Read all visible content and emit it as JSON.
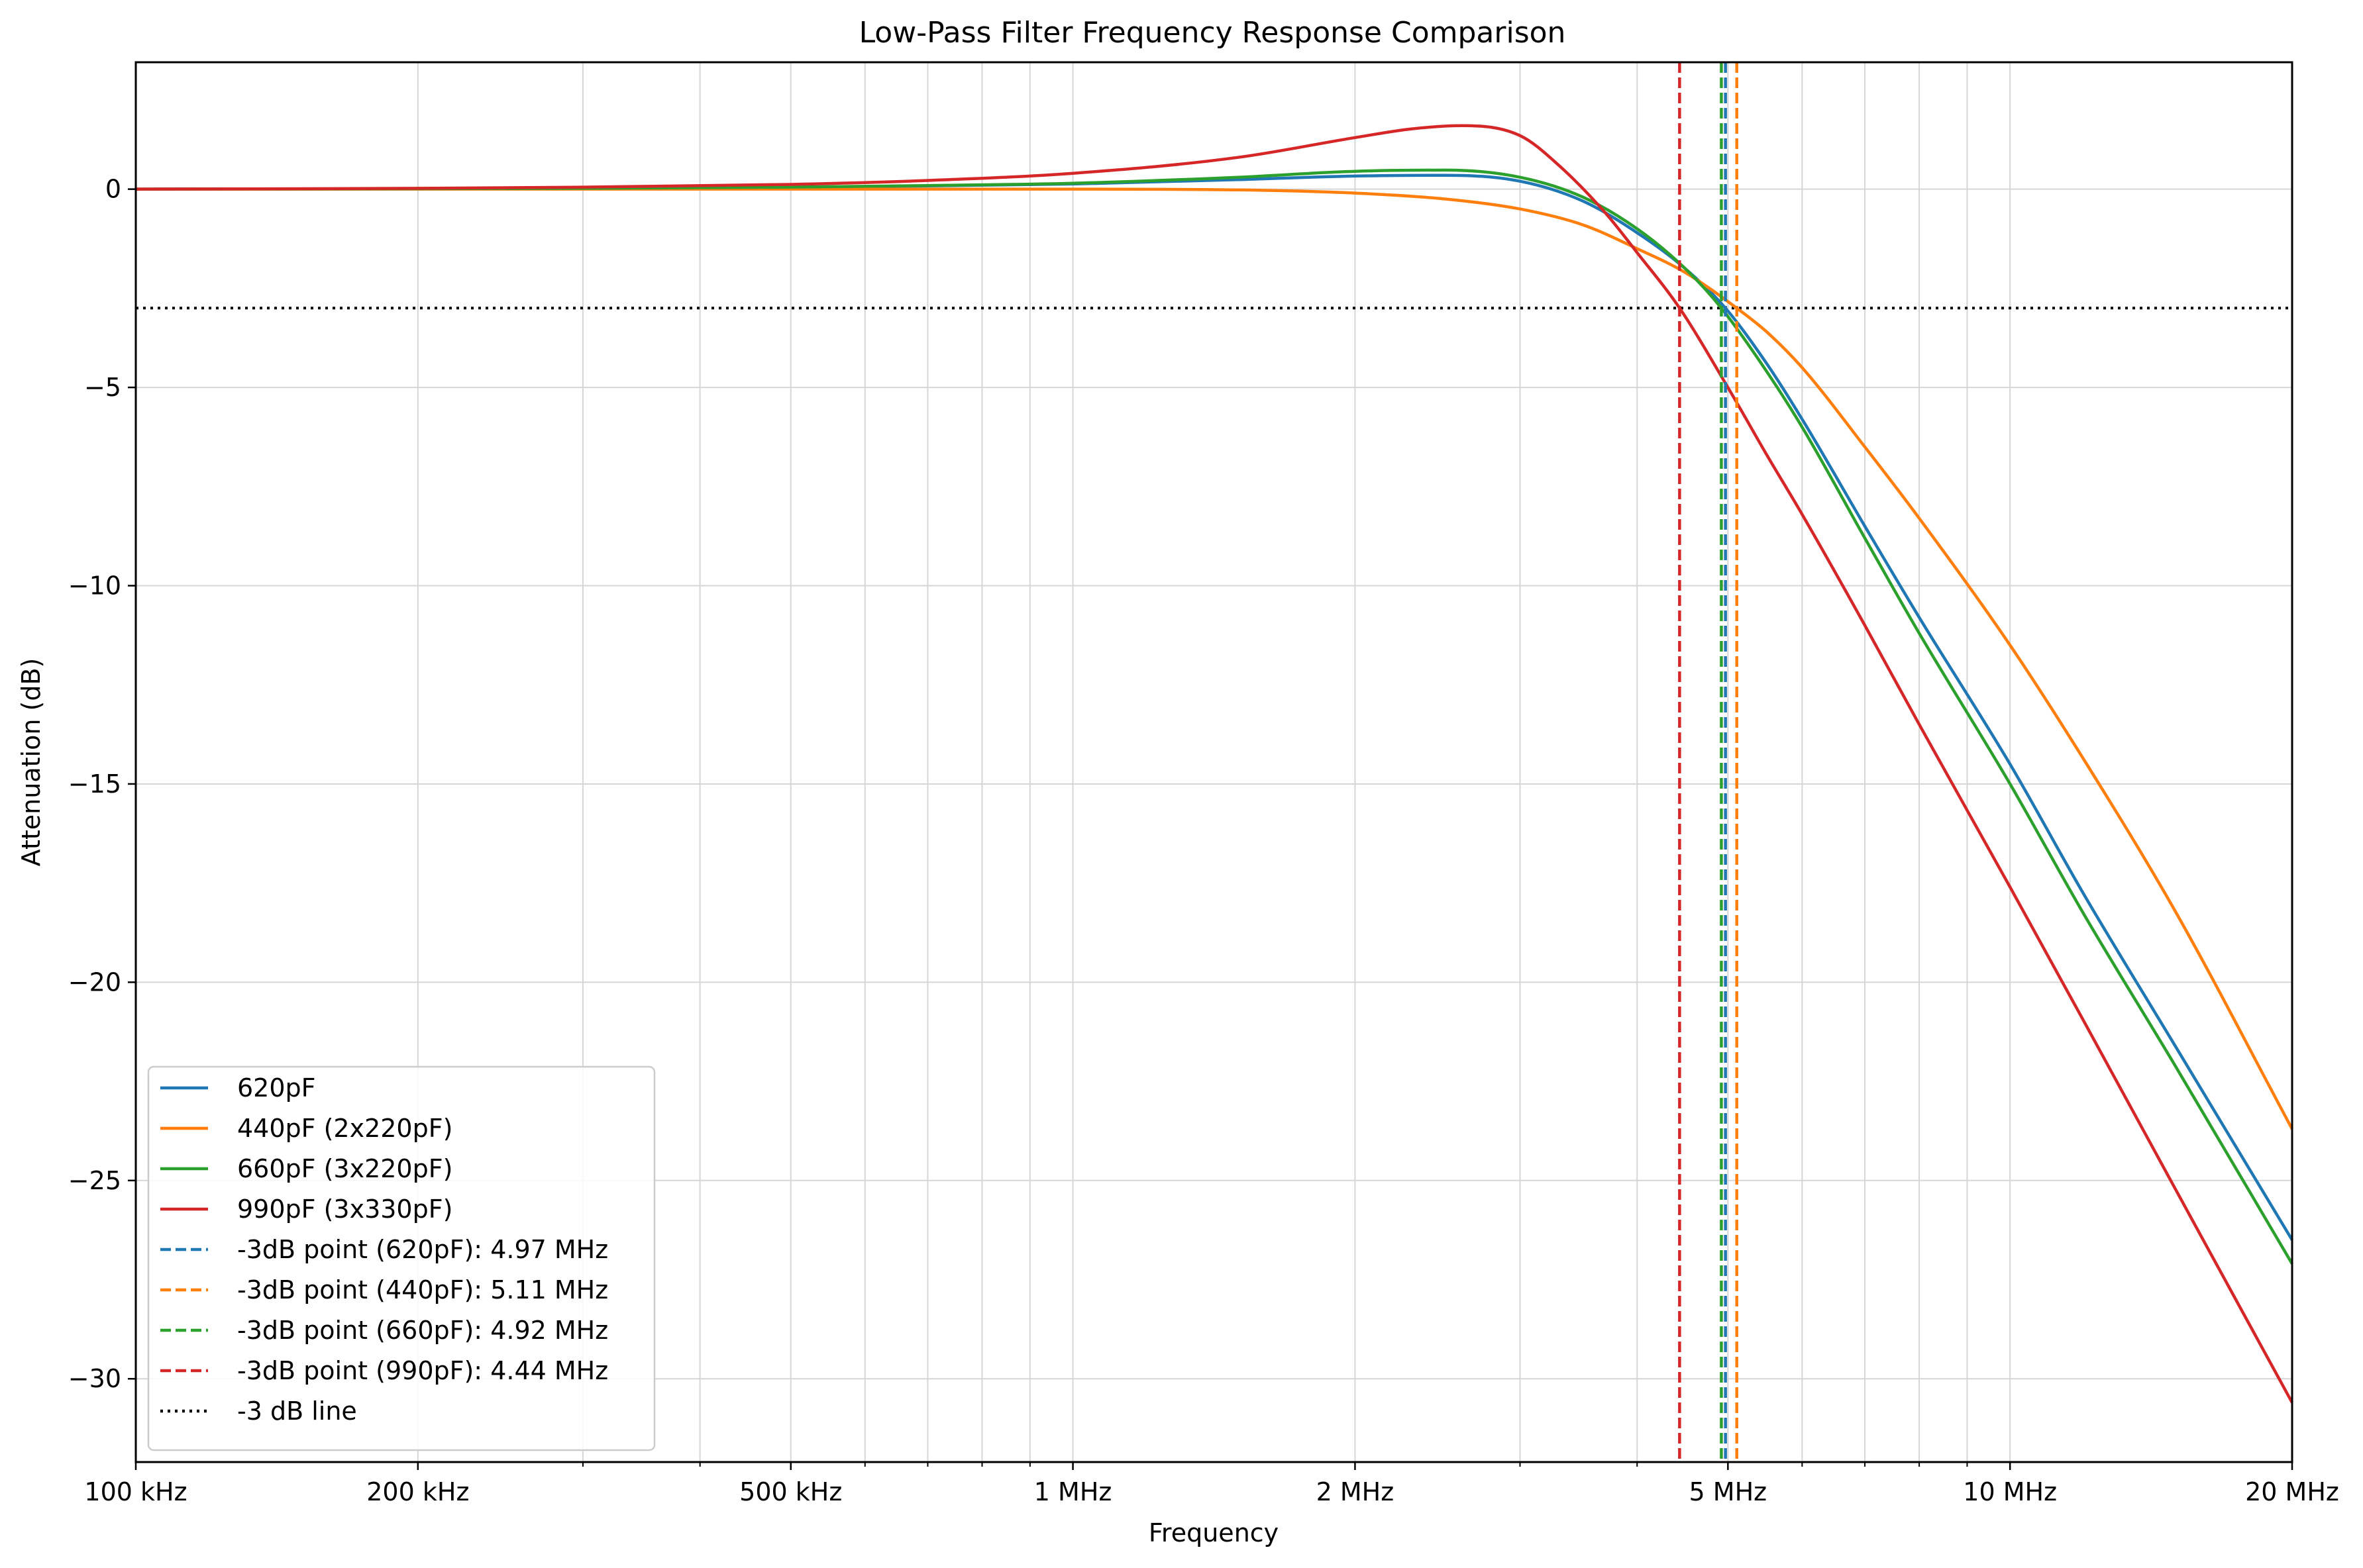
{
  "chart_data": {
    "type": "line",
    "title": "Low-Pass Filter Frequency Response Comparison",
    "xlabel": "Frequency",
    "ylabel": "Attenuation (dB)",
    "x_scale": "log",
    "x_unit": "Hz",
    "xlim": [
      100000,
      20000000
    ],
    "ylim": [
      -32.1,
      3.2
    ],
    "grid": true,
    "x_ticks": [
      {
        "value": 100000,
        "label": "100 kHz"
      },
      {
        "value": 200000,
        "label": "200 kHz"
      },
      {
        "value": 500000,
        "label": "500 kHz"
      },
      {
        "value": 1000000,
        "label": "1 MHz"
      },
      {
        "value": 2000000,
        "label": "2 MHz"
      },
      {
        "value": 5000000,
        "label": "5 MHz"
      },
      {
        "value": 10000000,
        "label": "10 MHz"
      },
      {
        "value": 20000000,
        "label": "20 MHz"
      }
    ],
    "y_ticks": [
      {
        "value": 0,
        "label": "0"
      },
      {
        "value": -5,
        "label": "−5"
      },
      {
        "value": -10,
        "label": "−10"
      },
      {
        "value": -15,
        "label": "−15"
      },
      {
        "value": -20,
        "label": "−20"
      },
      {
        "value": -25,
        "label": "−25"
      },
      {
        "value": -30,
        "label": "−30"
      }
    ],
    "series": [
      {
        "name": "620pF",
        "color": "#1f77b4",
        "style": "solid",
        "x": [
          100000,
          200000,
          300000,
          500000,
          700000,
          1000000,
          1500000,
          2000000,
          2500000,
          3000000,
          3500000,
          4000000,
          4500000,
          4970000,
          5500000,
          6000000,
          7000000,
          8000000,
          10000000,
          12000000,
          15000000,
          20000000
        ],
        "y": [
          0,
          0.01,
          0.02,
          0.05,
          0.08,
          0.13,
          0.24,
          0.33,
          0.35,
          0.2,
          -0.3,
          -1.1,
          -2.0,
          -3.0,
          -4.4,
          -5.8,
          -8.5,
          -10.8,
          -14.5,
          -17.8,
          -21.6,
          -26.5
        ]
      },
      {
        "name": "440pF (2x220pF)",
        "color": "#ff7f0e",
        "style": "solid",
        "x": [
          100000,
          500000,
          1000000,
          1500000,
          2000000,
          2500000,
          3000000,
          3500000,
          4000000,
          4500000,
          5110000,
          5500000,
          6000000,
          7000000,
          8000000,
          10000000,
          12000000,
          15000000,
          20000000
        ],
        "y": [
          0,
          0,
          0,
          -0.02,
          -0.1,
          -0.25,
          -0.5,
          -0.9,
          -1.5,
          -2.1,
          -3.0,
          -3.6,
          -4.5,
          -6.5,
          -8.3,
          -11.5,
          -14.4,
          -18.2,
          -23.7
        ]
      },
      {
        "name": "660pF (3x220pF)",
        "color": "#2ca02c",
        "style": "solid",
        "x": [
          100000,
          200000,
          300000,
          500000,
          700000,
          1000000,
          1500000,
          2000000,
          2500000,
          3000000,
          3500000,
          4000000,
          4500000,
          4920000,
          5500000,
          6000000,
          7000000,
          8000000,
          10000000,
          12000000,
          15000000,
          20000000
        ],
        "y": [
          0,
          0.01,
          0.02,
          0.05,
          0.09,
          0.15,
          0.3,
          0.45,
          0.48,
          0.3,
          -0.2,
          -1.0,
          -2.0,
          -3.0,
          -4.6,
          -6.0,
          -8.8,
          -11.2,
          -15.0,
          -18.3,
          -22.1,
          -27.1
        ]
      },
      {
        "name": "990pF (3x330pF)",
        "color": "#d62728",
        "style": "solid",
        "x": [
          100000,
          200000,
          300000,
          500000,
          700000,
          1000000,
          1500000,
          2000000,
          2300000,
          2600000,
          3000000,
          3300000,
          3700000,
          4000000,
          4440000,
          5000000,
          5500000,
          6000000,
          7000000,
          8000000,
          10000000,
          12000000,
          15000000,
          20000000
        ],
        "y": [
          0,
          0.02,
          0.05,
          0.12,
          0.22,
          0.4,
          0.8,
          1.3,
          1.52,
          1.6,
          1.35,
          0.6,
          -0.6,
          -1.6,
          -3.0,
          -5.0,
          -6.7,
          -8.2,
          -11.0,
          -13.5,
          -17.6,
          -21.0,
          -25.2,
          -30.6
        ]
      }
    ],
    "vlines": [
      {
        "name": "-3dB point (620pF): 4.97 MHz",
        "x": 4970000,
        "color": "#1f77b4",
        "style": "dashed"
      },
      {
        "name": "-3dB point (440pF): 5.11 MHz",
        "x": 5110000,
        "color": "#ff7f0e",
        "style": "dashed"
      },
      {
        "name": "-3dB point (660pF): 4.92 MHz",
        "x": 4920000,
        "color": "#2ca02c",
        "style": "dashed"
      },
      {
        "name": "-3dB point (990pF): 4.44 MHz",
        "x": 4440000,
        "color": "#d62728",
        "style": "dashed"
      }
    ],
    "hlines": [
      {
        "name": "-3 dB line",
        "y": -3,
        "color": "#000000",
        "style": "dotted"
      }
    ],
    "legend": {
      "location": "lower left",
      "entries": [
        {
          "label": "620pF",
          "color": "#1f77b4",
          "style": "solid"
        },
        {
          "label": "440pF (2x220pF)",
          "color": "#ff7f0e",
          "style": "solid"
        },
        {
          "label": "660pF (3x220pF)",
          "color": "#2ca02c",
          "style": "solid"
        },
        {
          "label": "990pF (3x330pF)",
          "color": "#d62728",
          "style": "solid"
        },
        {
          "label": "-3dB point (620pF): 4.97 MHz",
          "color": "#1f77b4",
          "style": "dashed"
        },
        {
          "label": "-3dB point (440pF): 5.11 MHz",
          "color": "#ff7f0e",
          "style": "dashed"
        },
        {
          "label": "-3dB point (660pF): 4.92 MHz",
          "color": "#2ca02c",
          "style": "dashed"
        },
        {
          "label": "-3dB point (990pF): 4.44 MHz",
          "color": "#d62728",
          "style": "dashed"
        },
        {
          "label": "-3 dB line",
          "color": "#000000",
          "style": "dotted"
        }
      ]
    }
  }
}
